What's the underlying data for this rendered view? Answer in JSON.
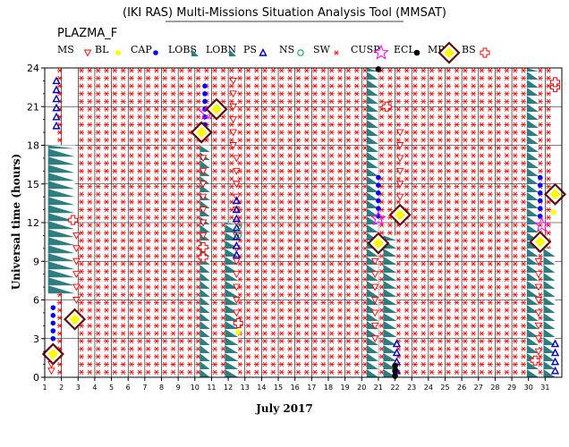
{
  "chart_data": {
    "type": "scatter",
    "title": "(IKI RAS) Multi-Missions Situation Analysis Tool (MMSAT)",
    "subtitle": "PLAZMA_F",
    "xlabel": "July 2017",
    "ylabel": "Universal time (hours)",
    "xlim": [
      1,
      32
    ],
    "ylim": [
      0,
      24
    ],
    "x_ticks": [
      1,
      2,
      3,
      4,
      5,
      6,
      7,
      8,
      9,
      10,
      11,
      12,
      13,
      14,
      15,
      16,
      17,
      18,
      19,
      20,
      21,
      22,
      23,
      24,
      25,
      26,
      27,
      28,
      29,
      30,
      31
    ],
    "y_ticks": [
      0,
      3,
      6,
      9,
      12,
      15,
      18,
      21,
      24
    ],
    "grid": true,
    "legend": [
      {
        "name": "MS",
        "symbol": "red-triangle-down"
      },
      {
        "name": "BL",
        "symbol": "yellow-dot"
      },
      {
        "name": "CAP",
        "symbol": "blue-dot"
      },
      {
        "name": "LOBS",
        "symbol": "teal-triangle"
      },
      {
        "name": "LOBN",
        "symbol": "teal-triangle"
      },
      {
        "name": "PS",
        "symbol": "blue-triangle-up"
      },
      {
        "name": "NS",
        "symbol": "green-circle"
      },
      {
        "name": "SW",
        "symbol": "red-asterisk"
      },
      {
        "name": "CUSP",
        "symbol": "magenta-star"
      },
      {
        "name": "ECL",
        "symbol": "black-dot"
      },
      {
        "name": "MP",
        "symbol": "brown-diamond"
      },
      {
        "name": "BS",
        "symbol": "red-cross"
      }
    ],
    "series": [
      {
        "name": "SW",
        "x_ranges": [
          [
            1.9,
            2.3,
            0,
            24
          ],
          [
            3.2,
            31.6,
            0,
            24
          ]
        ]
      },
      {
        "name": "LOBN",
        "x_ranges": [
          [
            1.2,
            2.8,
            6.5,
            18
          ],
          [
            10.3,
            10.9,
            0,
            18
          ],
          [
            11.8,
            12.6,
            0,
            12
          ],
          [
            20.3,
            21.0,
            0,
            24
          ],
          [
            21.3,
            22.1,
            0,
            11
          ],
          [
            29.9,
            30.6,
            0,
            24
          ],
          [
            30.9,
            31.6,
            0,
            10
          ]
        ]
      },
      {
        "name": "MS",
        "points": [
          [
            1.4,
            0.5
          ],
          [
            1.4,
            1.0
          ],
          [
            1.4,
            1.5
          ],
          [
            2.9,
            6
          ],
          [
            2.9,
            7
          ],
          [
            2.9,
            8
          ],
          [
            2.9,
            9
          ],
          [
            2.9,
            10
          ],
          [
            2.9,
            11
          ],
          [
            10.5,
            11
          ],
          [
            10.5,
            12
          ],
          [
            10.5,
            13
          ],
          [
            10.5,
            14
          ],
          [
            10.5,
            15
          ],
          [
            10.5,
            16
          ],
          [
            10.5,
            17
          ],
          [
            12.3,
            18
          ],
          [
            12.3,
            19
          ],
          [
            12.3,
            20
          ],
          [
            12.3,
            21
          ],
          [
            12.3,
            22
          ],
          [
            12.3,
            23
          ],
          [
            12.5,
            5
          ],
          [
            12.5,
            6
          ],
          [
            12.5,
            7
          ],
          [
            12.5,
            8
          ],
          [
            12.5,
            9
          ],
          [
            12.5,
            10
          ],
          [
            12.5,
            11
          ],
          [
            12.5,
            12
          ],
          [
            12.5,
            13
          ],
          [
            12.5,
            14
          ],
          [
            12.5,
            15
          ],
          [
            12.5,
            16
          ],
          [
            12.5,
            17
          ],
          [
            20.8,
            3
          ],
          [
            20.8,
            4
          ],
          [
            20.8,
            5
          ],
          [
            20.8,
            6
          ],
          [
            20.8,
            7
          ],
          [
            20.8,
            8
          ],
          [
            20.8,
            9
          ],
          [
            22.3,
            13
          ],
          [
            22.3,
            14
          ],
          [
            22.3,
            15
          ],
          [
            22.3,
            16
          ],
          [
            22.3,
            17
          ],
          [
            22.3,
            18
          ],
          [
            22.3,
            19
          ],
          [
            30.6,
            2
          ],
          [
            30.6,
            3
          ],
          [
            30.6,
            4
          ],
          [
            30.6,
            5
          ],
          [
            30.6,
            6
          ],
          [
            30.6,
            7
          ],
          [
            30.6,
            8
          ],
          [
            30.6,
            9
          ],
          [
            30.6,
            10
          ]
        ]
      },
      {
        "name": "PS",
        "points": [
          [
            1.7,
            19.5
          ],
          [
            1.7,
            20.2
          ],
          [
            1.7,
            20.9
          ],
          [
            1.7,
            21.6
          ],
          [
            1.7,
            22.3
          ],
          [
            1.7,
            23.0
          ],
          [
            12.5,
            9.5
          ],
          [
            12.5,
            10.2
          ],
          [
            12.5,
            10.9
          ],
          [
            12.5,
            11.6
          ],
          [
            12.5,
            12.3
          ],
          [
            12.5,
            13.0
          ],
          [
            12.5,
            13.7
          ],
          [
            22.1,
            0.5
          ],
          [
            22.1,
            1.2
          ],
          [
            22.1,
            1.9
          ],
          [
            22.1,
            2.6
          ],
          [
            31.6,
            0.5
          ],
          [
            31.6,
            1.2
          ],
          [
            31.6,
            1.9
          ],
          [
            31.6,
            2.6
          ]
        ]
      },
      {
        "name": "CAP",
        "points": [
          [
            1.5,
            3.0
          ],
          [
            1.5,
            3.6
          ],
          [
            1.5,
            4.2
          ],
          [
            1.5,
            4.8
          ],
          [
            1.5,
            5.4
          ],
          [
            10.6,
            19.0
          ],
          [
            10.6,
            19.6
          ],
          [
            10.6,
            20.2
          ],
          [
            10.6,
            20.8
          ],
          [
            10.6,
            21.4
          ],
          [
            10.6,
            22.0
          ],
          [
            10.6,
            22.6
          ],
          [
            21.0,
            12.5
          ],
          [
            21.0,
            13.1
          ],
          [
            21.0,
            13.7
          ],
          [
            21.0,
            14.3
          ],
          [
            21.0,
            14.9
          ],
          [
            21.0,
            15.5
          ],
          [
            30.7,
            12.5
          ],
          [
            30.7,
            13.1
          ],
          [
            30.7,
            13.7
          ],
          [
            30.7,
            14.3
          ],
          [
            30.7,
            14.9
          ],
          [
            30.7,
            15.5
          ]
        ]
      },
      {
        "name": "NS",
        "points": [
          [
            12.6,
            11.0
          ],
          [
            12.6,
            11.7
          ]
        ]
      },
      {
        "name": "BL",
        "points": [
          [
            12.6,
            3.5
          ],
          [
            31.5,
            12.8
          ]
        ]
      },
      {
        "name": "ECL",
        "points": [
          [
            21.0,
            23.9
          ],
          [
            22.0,
            0.1
          ],
          [
            22.0,
            0.5
          ],
          [
            22.0,
            0.9
          ]
        ]
      },
      {
        "name": "CUSP",
        "points": [
          [
            10.7,
            20.5
          ],
          [
            21.0,
            12.3
          ],
          [
            30.8,
            11.8
          ]
        ]
      },
      {
        "name": "MP",
        "points": [
          [
            1.5,
            1.8
          ],
          [
            2.8,
            4.5
          ],
          [
            10.4,
            19.0
          ],
          [
            11.3,
            20.8
          ],
          [
            21.0,
            10.4
          ],
          [
            22.3,
            12.6
          ],
          [
            30.7,
            10.5
          ],
          [
            31.6,
            14.2
          ]
        ]
      },
      {
        "name": "BS",
        "points": [
          [
            2.7,
            12.2
          ],
          [
            10.5,
            9.3
          ],
          [
            10.5,
            10.1
          ],
          [
            12.6,
            4.2
          ],
          [
            21.5,
            21.0
          ],
          [
            30.4,
            1.3
          ],
          [
            31.6,
            22.5
          ],
          [
            31.6,
            22.9
          ]
        ]
      }
    ],
    "colors": {
      "SW": "#ff0000",
      "LOBN": "#2e7d80",
      "MS": "#ff0000",
      "PS": "#0000c0",
      "CAP": "#0000ff",
      "NS": "#00a060",
      "BL": "#ffff00",
      "ECL": "#000000",
      "CUSP": "#ff00ff",
      "MP": "#5a1010",
      "BS": "#ff0000"
    }
  }
}
